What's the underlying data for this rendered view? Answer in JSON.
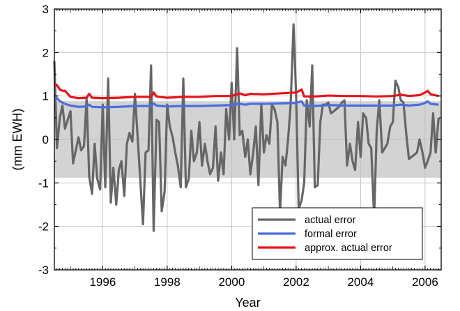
{
  "chart_data": {
    "type": "line",
    "xlabel": "Year",
    "ylabel": "(mm EWH)",
    "xlim": [
      1994.5,
      2006.5
    ],
    "ylim": [
      -3,
      3
    ],
    "xticks": [
      1996,
      1998,
      2000,
      2002,
      2004,
      2006
    ],
    "yticks": [
      -3,
      -2,
      -1,
      0,
      1,
      2,
      3
    ],
    "grid": true,
    "legend_position": "bottom-right",
    "band": {
      "lower": -0.88,
      "upper": 0.88,
      "color": "#d3d3d3"
    },
    "series": [
      {
        "name": "actual error",
        "color": "#666666",
        "points": [
          [
            1994.5,
            1.8
          ],
          [
            1994.58,
            -0.2
          ],
          [
            1994.67,
            0.5
          ],
          [
            1994.75,
            0.78
          ],
          [
            1994.83,
            0.25
          ],
          [
            1995.0,
            0.65
          ],
          [
            1995.08,
            -0.55
          ],
          [
            1995.25,
            0.05
          ],
          [
            1995.33,
            -0.25
          ],
          [
            1995.42,
            -0.15
          ],
          [
            1995.5,
            0.95
          ],
          [
            1995.58,
            -0.85
          ],
          [
            1995.67,
            -1.25
          ],
          [
            1995.75,
            -0.1
          ],
          [
            1995.83,
            -0.9
          ],
          [
            1995.92,
            -1.15
          ],
          [
            1996.0,
            0.8
          ],
          [
            1996.08,
            -1.1
          ],
          [
            1996.17,
            1.4
          ],
          [
            1996.25,
            -1.45
          ],
          [
            1996.33,
            -0.65
          ],
          [
            1996.42,
            -1.5
          ],
          [
            1996.5,
            -0.7
          ],
          [
            1996.58,
            -0.5
          ],
          [
            1996.67,
            -1.3
          ],
          [
            1996.75,
            -0.1
          ],
          [
            1996.83,
            0.15
          ],
          [
            1996.92,
            -0.05
          ],
          [
            1997.0,
            1.05
          ],
          [
            1997.08,
            0.1
          ],
          [
            1997.25,
            -1.95
          ],
          [
            1997.33,
            -0.3
          ],
          [
            1997.42,
            -0.25
          ],
          [
            1997.5,
            1.7
          ],
          [
            1997.58,
            -2.1
          ],
          [
            1997.67,
            0.45
          ],
          [
            1997.75,
            0.4
          ],
          [
            1997.83,
            -1.65
          ],
          [
            1997.92,
            -1.2
          ],
          [
            1998.0,
            0.8
          ],
          [
            1998.08,
            0.3
          ],
          [
            1998.17,
            0.05
          ],
          [
            1998.25,
            -0.3
          ],
          [
            1998.33,
            -0.6
          ],
          [
            1998.42,
            -1.1
          ],
          [
            1998.5,
            1.4
          ],
          [
            1998.58,
            -1.1
          ],
          [
            1998.67,
            -0.9
          ],
          [
            1998.75,
            0.2
          ],
          [
            1998.83,
            -0.5
          ],
          [
            1998.92,
            -0.3
          ],
          [
            1999.0,
            0.4
          ],
          [
            1999.08,
            -0.6
          ],
          [
            1999.17,
            -0.1
          ],
          [
            1999.25,
            -0.5
          ],
          [
            1999.33,
            -0.8
          ],
          [
            1999.42,
            -0.65
          ],
          [
            1999.5,
            0.3
          ],
          [
            1999.58,
            -0.95
          ],
          [
            1999.67,
            -0.3
          ],
          [
            1999.75,
            -0.8
          ],
          [
            1999.83,
            0.7
          ],
          [
            1999.92,
            0.0
          ],
          [
            2000.0,
            1.3
          ],
          [
            2000.08,
            0.0
          ],
          [
            2000.17,
            2.1
          ],
          [
            2000.25,
            0.1
          ],
          [
            2000.33,
            0.2
          ],
          [
            2000.42,
            -0.4
          ],
          [
            2000.5,
            0.0
          ],
          [
            2000.58,
            -0.8
          ],
          [
            2000.67,
            -0.3
          ],
          [
            2000.75,
            0.3
          ],
          [
            2000.83,
            -1.05
          ],
          [
            2000.92,
            0.8
          ],
          [
            2001.0,
            -0.3
          ],
          [
            2001.08,
            0.1
          ],
          [
            2001.17,
            -0.1
          ],
          [
            2001.25,
            0.8
          ],
          [
            2001.33,
            0.7
          ],
          [
            2001.42,
            0.4
          ],
          [
            2001.5,
            -1.7
          ],
          [
            2001.58,
            -0.4
          ],
          [
            2001.67,
            -0.6
          ],
          [
            2001.75,
            0.0
          ],
          [
            2001.83,
            0.8
          ],
          [
            2001.92,
            2.65
          ],
          [
            2002.0,
            1.0
          ],
          [
            2002.08,
            -1.6
          ],
          [
            2002.17,
            -1.4
          ],
          [
            2002.25,
            -1.0
          ],
          [
            2002.33,
            0.9
          ],
          [
            2002.42,
            0.3
          ],
          [
            2002.5,
            1.7
          ],
          [
            2002.58,
            -1.1
          ],
          [
            2002.67,
            -1.05
          ],
          [
            2002.75,
            0.4
          ],
          [
            2002.83,
            0.8
          ],
          [
            2002.92,
            0.8
          ],
          [
            2003.0,
            0.85
          ],
          [
            2003.08,
            0.6
          ],
          [
            2003.17,
            0.65
          ],
          [
            2003.25,
            0.7
          ],
          [
            2003.33,
            0.75
          ],
          [
            2003.42,
            0.85
          ],
          [
            2003.5,
            0.9
          ],
          [
            2003.58,
            -0.6
          ],
          [
            2003.67,
            -0.1
          ],
          [
            2003.75,
            -0.5
          ],
          [
            2003.83,
            -0.7
          ],
          [
            2003.92,
            0.4
          ],
          [
            2004.0,
            -0.4
          ],
          [
            2004.08,
            0.6
          ],
          [
            2004.17,
            0.5
          ],
          [
            2004.25,
            -0.1
          ],
          [
            2004.33,
            -0.2
          ],
          [
            2004.42,
            -1.8
          ],
          [
            2004.5,
            0.2
          ],
          [
            2004.58,
            0.9
          ],
          [
            2004.67,
            -0.3
          ],
          [
            2004.75,
            -0.2
          ],
          [
            2004.83,
            -0.1
          ],
          [
            2004.92,
            0.3
          ],
          [
            2005.0,
            0.4
          ],
          [
            2005.08,
            1.35
          ],
          [
            2005.17,
            1.2
          ],
          [
            2005.25,
            0.9
          ],
          [
            2005.33,
            0.85
          ],
          [
            2005.42,
            0.1
          ],
          [
            2005.5,
            -0.45
          ],
          [
            2005.58,
            -0.4
          ],
          [
            2005.67,
            -0.35
          ],
          [
            2005.75,
            -0.3
          ],
          [
            2005.83,
            0.0
          ],
          [
            2005.92,
            -0.3
          ],
          [
            2006.0,
            -0.65
          ],
          [
            2006.08,
            -0.5
          ],
          [
            2006.17,
            -0.3
          ],
          [
            2006.25,
            0.6
          ],
          [
            2006.33,
            -0.3
          ],
          [
            2006.42,
            0.5
          ]
        ]
      },
      {
        "name": "formal error",
        "color": "#4a6ee0",
        "points": [
          [
            1994.5,
            1.0
          ],
          [
            1994.58,
            0.95
          ],
          [
            1994.67,
            0.88
          ],
          [
            1994.75,
            0.85
          ],
          [
            1994.83,
            0.82
          ],
          [
            1995.0,
            0.78
          ],
          [
            1995.25,
            0.75
          ],
          [
            1995.5,
            0.76
          ],
          [
            1995.58,
            0.8
          ],
          [
            1995.67,
            0.75
          ],
          [
            1996.0,
            0.74
          ],
          [
            1996.5,
            0.75
          ],
          [
            1997.0,
            0.77
          ],
          [
            1997.5,
            0.77
          ],
          [
            1997.58,
            0.83
          ],
          [
            1997.67,
            0.78
          ],
          [
            1998.0,
            0.76
          ],
          [
            1998.5,
            0.77
          ],
          [
            1999.0,
            0.77
          ],
          [
            1999.5,
            0.78
          ],
          [
            2000.0,
            0.79
          ],
          [
            2000.25,
            0.82
          ],
          [
            2000.42,
            0.8
          ],
          [
            2000.58,
            0.82
          ],
          [
            2001.0,
            0.82
          ],
          [
            2001.5,
            0.83
          ],
          [
            2002.0,
            0.84
          ],
          [
            2002.17,
            0.88
          ],
          [
            2002.25,
            0.78
          ],
          [
            2002.58,
            0.77
          ],
          [
            2003.0,
            0.79
          ],
          [
            2003.5,
            0.78
          ],
          [
            2004.0,
            0.78
          ],
          [
            2004.5,
            0.78
          ],
          [
            2005.0,
            0.78
          ],
          [
            2005.25,
            0.8
          ],
          [
            2005.5,
            0.78
          ],
          [
            2005.83,
            0.8
          ],
          [
            2006.0,
            0.84
          ],
          [
            2006.08,
            0.88
          ],
          [
            2006.17,
            0.82
          ],
          [
            2006.42,
            0.8
          ]
        ]
      },
      {
        "name": "approx. actual error",
        "color": "#e8141c",
        "points": [
          [
            1994.5,
            1.28
          ],
          [
            1994.58,
            1.25
          ],
          [
            1994.67,
            1.15
          ],
          [
            1994.75,
            1.12
          ],
          [
            1994.83,
            1.12
          ],
          [
            1995.0,
            0.98
          ],
          [
            1995.25,
            0.95
          ],
          [
            1995.5,
            0.96
          ],
          [
            1995.58,
            1.05
          ],
          [
            1995.67,
            0.96
          ],
          [
            1996.0,
            0.95
          ],
          [
            1996.5,
            0.96
          ],
          [
            1997.0,
            0.98
          ],
          [
            1997.5,
            0.98
          ],
          [
            1997.58,
            1.08
          ],
          [
            1997.67,
            0.99
          ],
          [
            1998.0,
            0.96
          ],
          [
            1998.5,
            0.98
          ],
          [
            1999.0,
            0.98
          ],
          [
            1999.5,
            1.0
          ],
          [
            2000.0,
            1.0
          ],
          [
            2000.25,
            1.06
          ],
          [
            2000.42,
            1.02
          ],
          [
            2000.58,
            1.05
          ],
          [
            2001.0,
            1.04
          ],
          [
            2001.5,
            1.06
          ],
          [
            2002.0,
            1.08
          ],
          [
            2002.17,
            1.15
          ],
          [
            2002.25,
            0.99
          ],
          [
            2002.58,
            0.99
          ],
          [
            2003.0,
            1.01
          ],
          [
            2003.5,
            1.0
          ],
          [
            2004.0,
            1.0
          ],
          [
            2004.5,
            0.99
          ],
          [
            2005.0,
            1.0
          ],
          [
            2005.25,
            1.03
          ],
          [
            2005.5,
            1.0
          ],
          [
            2005.83,
            1.02
          ],
          [
            2006.0,
            1.08
          ],
          [
            2006.08,
            1.12
          ],
          [
            2006.17,
            1.04
          ],
          [
            2006.42,
            1.0
          ]
        ]
      }
    ]
  }
}
